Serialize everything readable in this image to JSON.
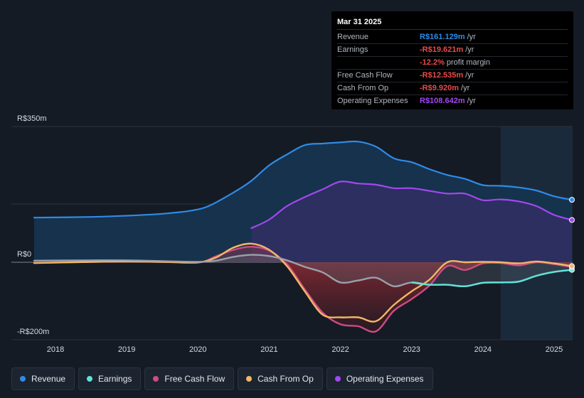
{
  "chart_data": {
    "type": "area",
    "title": "",
    "y_axis": {
      "unit": "R$m",
      "top_label": "R$350m",
      "zero_label": "R$0",
      "bottom_label": "-R$200m",
      "ylim": [
        -200,
        350
      ]
    },
    "x_axis": {
      "ticks": [
        "2018",
        "2019",
        "2020",
        "2021",
        "2022",
        "2023",
        "2024",
        "2025"
      ],
      "xlim": [
        2017.7,
        2025.25
      ]
    },
    "highlight_start": 2024.25,
    "series": [
      {
        "name": "Revenue",
        "color": "#2f8be6",
        "points": [
          [
            2017.7,
            115
          ],
          [
            2018.5,
            117
          ],
          [
            2019.0,
            120
          ],
          [
            2019.5,
            125
          ],
          [
            2019.9,
            133
          ],
          [
            2020.15,
            145
          ],
          [
            2020.5,
            180
          ],
          [
            2020.75,
            210
          ],
          [
            2021.0,
            250
          ],
          [
            2021.25,
            278
          ],
          [
            2021.5,
            302
          ],
          [
            2021.75,
            306
          ],
          [
            2022.0,
            309
          ],
          [
            2022.25,
            311
          ],
          [
            2022.5,
            298
          ],
          [
            2022.75,
            268
          ],
          [
            2023.0,
            258
          ],
          [
            2023.25,
            240
          ],
          [
            2023.5,
            225
          ],
          [
            2023.75,
            215
          ],
          [
            2024.0,
            199
          ],
          [
            2024.25,
            197
          ],
          [
            2024.5,
            193
          ],
          [
            2024.75,
            185
          ],
          [
            2025.0,
            170
          ],
          [
            2025.25,
            161
          ]
        ]
      },
      {
        "name": "Operating Expenses",
        "color": "#a347ef",
        "points": [
          [
            2020.75,
            88
          ],
          [
            2021.0,
            110
          ],
          [
            2021.25,
            145
          ],
          [
            2021.5,
            168
          ],
          [
            2021.75,
            188
          ],
          [
            2022.0,
            208
          ],
          [
            2022.25,
            203
          ],
          [
            2022.5,
            200
          ],
          [
            2022.75,
            191
          ],
          [
            2023.0,
            191
          ],
          [
            2023.25,
            184
          ],
          [
            2023.5,
            177
          ],
          [
            2023.75,
            177
          ],
          [
            2024.0,
            160
          ],
          [
            2024.25,
            162
          ],
          [
            2024.5,
            157
          ],
          [
            2024.75,
            145
          ],
          [
            2025.0,
            122
          ],
          [
            2025.25,
            109
          ]
        ]
      },
      {
        "name": "Earnings",
        "color": "#5ee3d7",
        "points": [
          [
            2017.7,
            4
          ],
          [
            2018.5,
            5
          ],
          [
            2019.0,
            5
          ],
          [
            2019.5,
            3
          ],
          [
            2020.0,
            1
          ],
          [
            2020.25,
            4
          ],
          [
            2020.5,
            14
          ],
          [
            2020.75,
            19
          ],
          [
            2021.0,
            16
          ],
          [
            2021.25,
            5
          ],
          [
            2021.5,
            -12
          ],
          [
            2021.75,
            -26
          ],
          [
            2022.0,
            -52
          ],
          [
            2022.25,
            -47
          ],
          [
            2022.5,
            -40
          ],
          [
            2022.75,
            -62
          ],
          [
            2023.0,
            -52
          ],
          [
            2023.25,
            -58
          ],
          [
            2023.5,
            -58
          ],
          [
            2023.75,
            -62
          ],
          [
            2024.0,
            -53
          ],
          [
            2024.25,
            -52
          ],
          [
            2024.5,
            -50
          ],
          [
            2024.75,
            -35
          ],
          [
            2025.0,
            -25
          ],
          [
            2025.25,
            -19.621
          ]
        ]
      },
      {
        "name": "Free Cash Flow",
        "color": "#d14a82",
        "points": [
          [
            2017.7,
            -2
          ],
          [
            2018.5,
            1
          ],
          [
            2019.0,
            2
          ],
          [
            2019.5,
            1
          ],
          [
            2020.0,
            -1
          ],
          [
            2020.25,
            15
          ],
          [
            2020.5,
            32
          ],
          [
            2020.75,
            40
          ],
          [
            2021.0,
            30
          ],
          [
            2021.25,
            -5
          ],
          [
            2021.5,
            -70
          ],
          [
            2021.75,
            -130
          ],
          [
            2022.0,
            -160
          ],
          [
            2022.25,
            -165
          ],
          [
            2022.5,
            -178
          ],
          [
            2022.75,
            -125
          ],
          [
            2023.0,
            -95
          ],
          [
            2023.25,
            -60
          ],
          [
            2023.5,
            -10
          ],
          [
            2023.75,
            -20
          ],
          [
            2024.0,
            -3
          ],
          [
            2024.25,
            -2
          ],
          [
            2024.5,
            -8
          ],
          [
            2024.75,
            0
          ],
          [
            2025.0,
            -5
          ],
          [
            2025.25,
            -12.535
          ]
        ]
      },
      {
        "name": "Cash From Op",
        "color": "#f2b765",
        "points": [
          [
            2017.7,
            -2
          ],
          [
            2018.5,
            1
          ],
          [
            2019.0,
            2
          ],
          [
            2019.5,
            1
          ],
          [
            2020.0,
            0
          ],
          [
            2020.25,
            12
          ],
          [
            2020.5,
            38
          ],
          [
            2020.75,
            48
          ],
          [
            2021.0,
            32
          ],
          [
            2021.25,
            -10
          ],
          [
            2021.5,
            -75
          ],
          [
            2021.75,
            -135
          ],
          [
            2022.0,
            -142
          ],
          [
            2022.25,
            -142
          ],
          [
            2022.5,
            -152
          ],
          [
            2022.75,
            -110
          ],
          [
            2023.0,
            -75
          ],
          [
            2023.25,
            -45
          ],
          [
            2023.5,
            0
          ],
          [
            2023.75,
            0
          ],
          [
            2024.0,
            1
          ],
          [
            2024.25,
            0
          ],
          [
            2024.5,
            -3
          ],
          [
            2024.75,
            2
          ],
          [
            2025.0,
            -3
          ],
          [
            2025.25,
            -9.92
          ]
        ]
      }
    ]
  },
  "tooltip": {
    "date": "Mar 31 2025",
    "rows": [
      {
        "label": "Revenue",
        "value": "R$161.129m",
        "unit": "/yr",
        "color": "#2f8be6"
      },
      {
        "label": "Earnings",
        "value": "-R$19.621m",
        "unit": "/yr",
        "color": "#e84b4b"
      },
      {
        "label": "",
        "value": "-12.2%",
        "unit": "profit margin",
        "color": "#e84b4b"
      },
      {
        "label": "Free Cash Flow",
        "value": "-R$12.535m",
        "unit": "/yr",
        "color": "#e84b4b"
      },
      {
        "label": "Cash From Op",
        "value": "-R$9.920m",
        "unit": "/yr",
        "color": "#e84b4b"
      },
      {
        "label": "Operating Expenses",
        "value": "R$108.642m",
        "unit": "/yr",
        "color": "#a347ef"
      }
    ]
  },
  "legend": [
    {
      "label": "Revenue",
      "color": "#2f8be6"
    },
    {
      "label": "Earnings",
      "color": "#5ee3d7"
    },
    {
      "label": "Free Cash Flow",
      "color": "#d14a82"
    },
    {
      "label": "Cash From Op",
      "color": "#f2b765"
    },
    {
      "label": "Operating Expenses",
      "color": "#a347ef"
    }
  ]
}
